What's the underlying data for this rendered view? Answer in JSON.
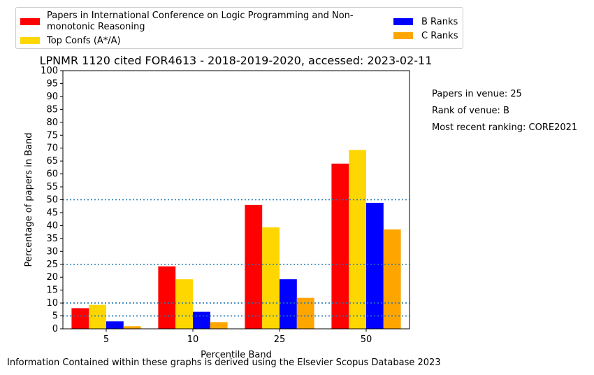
{
  "chart_data": {
    "type": "bar",
    "title": "LPNMR 1120 cited FOR4613 - 2018-2019-2020, accessed: 2023-02-11",
    "xlabel": "Percentile Band",
    "ylabel": "Percentage of papers in Band",
    "categories": [
      "5",
      "10",
      "25",
      "50"
    ],
    "ylim": [
      0,
      100
    ],
    "yticks": [
      "0",
      "5",
      "10",
      "15",
      "20",
      "25",
      "30",
      "35",
      "40",
      "45",
      "50",
      "55",
      "60",
      "65",
      "70",
      "75",
      "80",
      "85",
      "90",
      "95",
      "100"
    ],
    "reference_lines": [
      5,
      10,
      25,
      50
    ],
    "series": [
      {
        "name": "Papers in International Conference on Logic Programming and Non-monotonic Reasoning",
        "color": "#ff0000",
        "values": [
          8,
          24.2,
          48,
          64
        ]
      },
      {
        "name": "Top Confs (A*/A)",
        "color": "#ffd700",
        "values": [
          9.3,
          19.2,
          39.3,
          69.3
        ]
      },
      {
        "name": "B Ranks",
        "color": "#0000ff",
        "values": [
          2.9,
          6.6,
          19.2,
          48.8
        ]
      },
      {
        "name": "C Ranks",
        "color": "#ffa500",
        "values": [
          1.0,
          2.6,
          12.0,
          38.5
        ]
      }
    ]
  },
  "legend": {
    "items": [
      "Papers in International Conference on Logic Programming and Non-monotonic Reasoning",
      "Top Confs (A*/A)",
      "B Ranks",
      "C Ranks"
    ]
  },
  "info": {
    "papers_in_venue": "Papers in venue: 25",
    "rank_of_venue": "Rank of venue: B",
    "most_recent_ranking": "Most recent ranking: CORE2021"
  },
  "footer": "Information Contained within these graphs is derived using the Elsevier Scopus Database 2023"
}
